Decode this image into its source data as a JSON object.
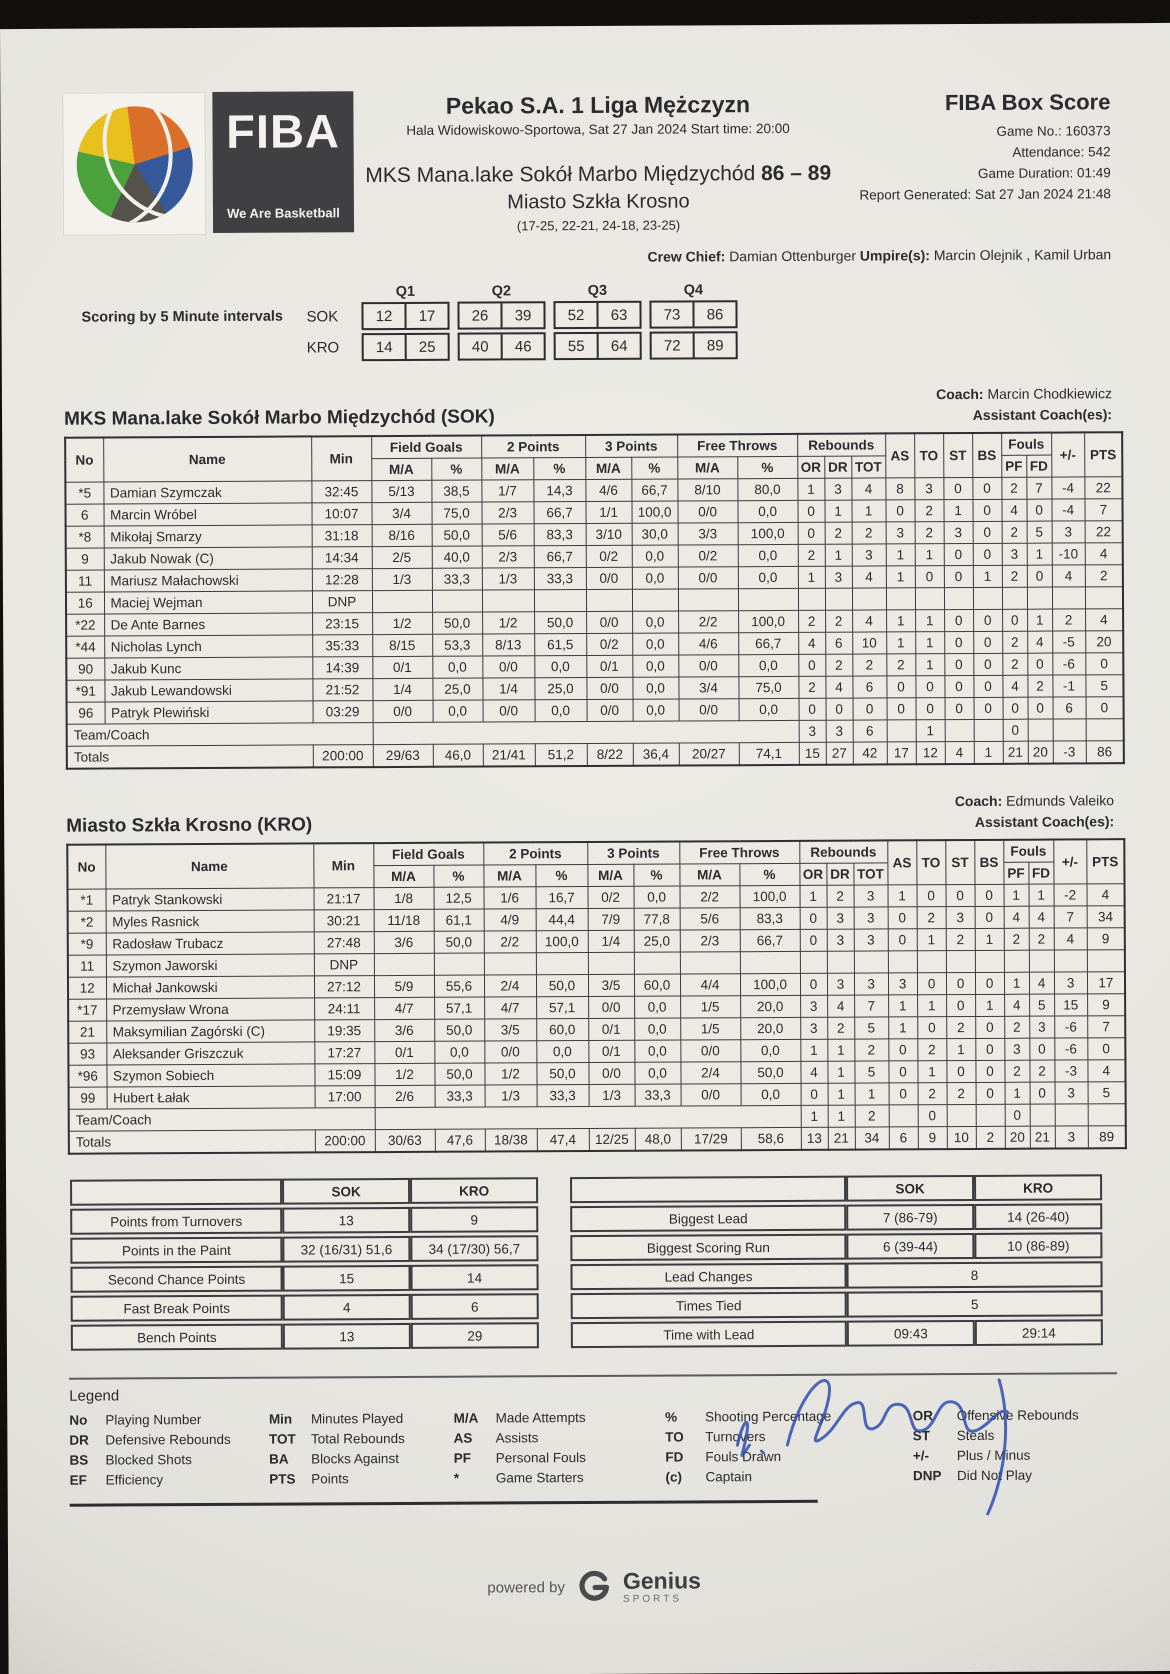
{
  "header": {
    "league": "Pekao S.A. 1 Liga Mężczyzn",
    "venue_line": "Hala Widowiskowo-Sportowa, Sat 27 Jan 2024 Start time: 20:00",
    "match_team": "MKS Mana.lake Sokół Marbo Międzychód ",
    "match_score": "86 – 89",
    "team2_line": "Miasto Szkła Krosno",
    "quarter_scores": "(17-25, 22-21, 24-18, 23-25)",
    "report_title": "FIBA Box Score",
    "game_no": "Game No.: 160373",
    "attendance": "Attendance: 542",
    "duration": "Game Duration: 01:49",
    "generated": "Report Generated: Sat 27 Jan 2024 21:48",
    "crew_label": "Crew Chief:",
    "crew_chief": " Damian Ottenburger ",
    "umpires_label": "Umpire(s):",
    "umpires": " Marcin Olejnik , Kamil Urban",
    "fiba_logo": {
      "title": "FIBA",
      "tagline": "We Are Basketball"
    }
  },
  "intervals": {
    "label": "Scoring by 5 Minute intervals",
    "quarters": [
      "Q1",
      "Q2",
      "Q3",
      "Q4"
    ],
    "rows": [
      {
        "team": "SOK",
        "values": [
          [
            "12",
            "17"
          ],
          [
            "26",
            "39"
          ],
          [
            "52",
            "63"
          ],
          [
            "73",
            "86"
          ]
        ]
      },
      {
        "team": "KRO",
        "values": [
          [
            "14",
            "25"
          ],
          [
            "40",
            "46"
          ],
          [
            "55",
            "64"
          ],
          [
            "72",
            "89"
          ]
        ]
      }
    ]
  },
  "table": {
    "no": "No",
    "name": "Name",
    "min": "Min",
    "fg": "Field Goals",
    "p2": "2 Points",
    "p3": "3 Points",
    "ft": "Free Throws",
    "reb": "Rebounds",
    "ma": "M/A",
    "pct": "%",
    "or": "OR",
    "dr": "DR",
    "tot": "TOT",
    "as": "AS",
    "to": "TO",
    "st": "ST",
    "bs": "BS",
    "fouls": "Fouls",
    "pf": "PF",
    "fd": "FD",
    "pm": "+/-",
    "pts": "PTS",
    "team_coach": "Team/Coach",
    "totals": "Totals"
  },
  "teams": [
    {
      "title": "MKS Mana.lake Sokół Marbo Międzychód (SOK)",
      "coach_label": "Coach:",
      "coach": " Marcin Chodkiewicz",
      "assistant_label": "Assistant Coach(es):",
      "players": [
        [
          "*5",
          "Damian Szymczak",
          "32:45",
          "5/13",
          "38,5",
          "1/7",
          "14,3",
          "4/6",
          "66,7",
          "8/10",
          "80,0",
          "1",
          "3",
          "4",
          "8",
          "3",
          "0",
          "0",
          "2",
          "7",
          "-4",
          "22"
        ],
        [
          "6",
          "Marcin Wróbel",
          "10:07",
          "3/4",
          "75,0",
          "2/3",
          "66,7",
          "1/1",
          "100,0",
          "0/0",
          "0,0",
          "0",
          "1",
          "1",
          "0",
          "2",
          "1",
          "0",
          "4",
          "0",
          "-4",
          "7"
        ],
        [
          "*8",
          "Mikołaj Smarzy",
          "31:18",
          "8/16",
          "50,0",
          "5/6",
          "83,3",
          "3/10",
          "30,0",
          "3/3",
          "100,0",
          "0",
          "2",
          "2",
          "3",
          "2",
          "3",
          "0",
          "2",
          "5",
          "3",
          "22"
        ],
        [
          "9",
          "Jakub Nowak (C)",
          "14:34",
          "2/5",
          "40,0",
          "2/3",
          "66,7",
          "0/2",
          "0,0",
          "0/2",
          "0,0",
          "2",
          "1",
          "3",
          "1",
          "1",
          "0",
          "0",
          "3",
          "1",
          "-10",
          "4"
        ],
        [
          "11",
          "Mariusz Małachowski",
          "12:28",
          "1/3",
          "33,3",
          "1/3",
          "33,3",
          "0/0",
          "0,0",
          "0/0",
          "0,0",
          "1",
          "3",
          "4",
          "1",
          "0",
          "0",
          "1",
          "2",
          "0",
          "4",
          "2"
        ],
        [
          "16",
          "Maciej Wejman",
          "DNP",
          "",
          "",
          "",
          "",
          "",
          "",
          "",
          "",
          "",
          "",
          "",
          "",
          "",
          "",
          "",
          "",
          "",
          "",
          ""
        ],
        [
          "*22",
          "De Ante Barnes",
          "23:15",
          "1/2",
          "50,0",
          "1/2",
          "50,0",
          "0/0",
          "0,0",
          "2/2",
          "100,0",
          "2",
          "2",
          "4",
          "1",
          "1",
          "0",
          "0",
          "0",
          "1",
          "2",
          "4"
        ],
        [
          "*44",
          "Nicholas Lynch",
          "35:33",
          "8/15",
          "53,3",
          "8/13",
          "61,5",
          "0/2",
          "0,0",
          "4/6",
          "66,7",
          "4",
          "6",
          "10",
          "1",
          "1",
          "0",
          "0",
          "2",
          "4",
          "-5",
          "20"
        ],
        [
          "90",
          "Jakub Kunc",
          "14:39",
          "0/1",
          "0,0",
          "0/0",
          "0,0",
          "0/1",
          "0,0",
          "0/0",
          "0,0",
          "0",
          "2",
          "2",
          "2",
          "1",
          "0",
          "0",
          "2",
          "0",
          "-6",
          "0"
        ],
        [
          "*91",
          "Jakub Lewandowski",
          "21:52",
          "1/4",
          "25,0",
          "1/4",
          "25,0",
          "0/0",
          "0,0",
          "3/4",
          "75,0",
          "2",
          "4",
          "6",
          "0",
          "0",
          "0",
          "0",
          "4",
          "2",
          "-1",
          "5"
        ],
        [
          "96",
          "Patryk Plewiński",
          "03:29",
          "0/0",
          "0,0",
          "0/0",
          "0,0",
          "0/0",
          "0,0",
          "0/0",
          "0,0",
          "0",
          "0",
          "0",
          "0",
          "0",
          "0",
          "0",
          "0",
          "0",
          "6",
          "0"
        ]
      ],
      "team_coach": [
        "3",
        "3",
        "6",
        "",
        "1",
        "",
        "",
        "0",
        "",
        "",
        ""
      ],
      "totals": [
        "200:00",
        "29/63",
        "46,0",
        "21/41",
        "51,2",
        "8/22",
        "36,4",
        "20/27",
        "74,1",
        "15",
        "27",
        "42",
        "17",
        "12",
        "4",
        "1",
        "21",
        "20",
        "-3",
        "86"
      ]
    },
    {
      "title": "Miasto Szkła Krosno (KRO)",
      "coach_label": "Coach:",
      "coach": " Edmunds Valeiko",
      "assistant_label": "Assistant Coach(es):",
      "players": [
        [
          "*1",
          "Patryk Stankowski",
          "21:17",
          "1/8",
          "12,5",
          "1/6",
          "16,7",
          "0/2",
          "0,0",
          "2/2",
          "100,0",
          "1",
          "2",
          "3",
          "1",
          "0",
          "0",
          "0",
          "1",
          "1",
          "-2",
          "4"
        ],
        [
          "*2",
          "Myles Rasnick",
          "30:21",
          "11/18",
          "61,1",
          "4/9",
          "44,4",
          "7/9",
          "77,8",
          "5/6",
          "83,3",
          "0",
          "3",
          "3",
          "0",
          "2",
          "3",
          "0",
          "4",
          "4",
          "7",
          "34"
        ],
        [
          "*9",
          "Radosław Trubacz",
          "27:48",
          "3/6",
          "50,0",
          "2/2",
          "100,0",
          "1/4",
          "25,0",
          "2/3",
          "66,7",
          "0",
          "3",
          "3",
          "0",
          "1",
          "2",
          "1",
          "2",
          "2",
          "4",
          "9"
        ],
        [
          "11",
          "Szymon Jaworski",
          "DNP",
          "",
          "",
          "",
          "",
          "",
          "",
          "",
          "",
          "",
          "",
          "",
          "",
          "",
          "",
          "",
          "",
          "",
          "",
          ""
        ],
        [
          "12",
          "Michał Jankowski",
          "27:12",
          "5/9",
          "55,6",
          "2/4",
          "50,0",
          "3/5",
          "60,0",
          "4/4",
          "100,0",
          "0",
          "3",
          "3",
          "3",
          "0",
          "0",
          "0",
          "1",
          "4",
          "3",
          "17"
        ],
        [
          "*17",
          "Przemysław Wrona",
          "24:11",
          "4/7",
          "57,1",
          "4/7",
          "57,1",
          "0/0",
          "0,0",
          "1/5",
          "20,0",
          "3",
          "4",
          "7",
          "1",
          "1",
          "0",
          "1",
          "4",
          "5",
          "15",
          "9"
        ],
        [
          "21",
          "Maksymilian Zagórski (C)",
          "19:35",
          "3/6",
          "50,0",
          "3/5",
          "60,0",
          "0/1",
          "0,0",
          "1/5",
          "20,0",
          "3",
          "2",
          "5",
          "1",
          "0",
          "2",
          "0",
          "2",
          "3",
          "-6",
          "7"
        ],
        [
          "93",
          "Aleksander Griszczuk",
          "17:27",
          "0/1",
          "0,0",
          "0/0",
          "0,0",
          "0/1",
          "0,0",
          "0/0",
          "0,0",
          "1",
          "1",
          "2",
          "0",
          "2",
          "1",
          "0",
          "3",
          "0",
          "-6",
          "0"
        ],
        [
          "*96",
          "Szymon Sobiech",
          "15:09",
          "1/2",
          "50,0",
          "1/2",
          "50,0",
          "0/0",
          "0,0",
          "2/4",
          "50,0",
          "4",
          "1",
          "5",
          "0",
          "1",
          "0",
          "0",
          "2",
          "2",
          "-3",
          "4"
        ],
        [
          "99",
          "Hubert Łałak",
          "17:00",
          "2/6",
          "33,3",
          "1/3",
          "33,3",
          "1/3",
          "33,3",
          "0/0",
          "0,0",
          "0",
          "1",
          "1",
          "0",
          "2",
          "2",
          "0",
          "1",
          "0",
          "3",
          "5"
        ]
      ],
      "team_coach": [
        "1",
        "1",
        "2",
        "",
        "0",
        "",
        "",
        "0",
        "",
        "",
        ""
      ],
      "totals": [
        "200:00",
        "30/63",
        "47,6",
        "18/38",
        "47,4",
        "12/25",
        "48,0",
        "17/29",
        "58,6",
        "13",
        "21",
        "34",
        "6",
        "9",
        "10",
        "2",
        "20",
        "21",
        "3",
        "89"
      ]
    }
  ],
  "summary_left": {
    "headers": [
      "",
      "SOK",
      "KRO"
    ],
    "rows": [
      [
        "Points from Turnovers",
        "13",
        "9"
      ],
      [
        "Points in the Paint",
        "32 (16/31) 51,6",
        "34 (17/30) 56,7"
      ],
      [
        "Second Chance Points",
        "15",
        "14"
      ],
      [
        "Fast Break Points",
        "4",
        "6"
      ],
      [
        "Bench Points",
        "13",
        "29"
      ]
    ]
  },
  "summary_right": {
    "headers": [
      "",
      "SOK",
      "KRO"
    ],
    "rows": [
      [
        "Biggest Lead",
        "7 (86-79)",
        "14 (26-40)"
      ],
      [
        "Biggest Scoring Run",
        "6 (39-44)",
        "10 (86-89)"
      ],
      [
        "Lead Changes",
        "8"
      ],
      [
        "Times Tied",
        "5"
      ],
      [
        "Time with Lead",
        "09:43",
        "29:14"
      ]
    ]
  },
  "legend": {
    "title": "Legend",
    "columns": [
      [
        [
          "No",
          "Playing Number"
        ],
        [
          "DR",
          "Defensive Rebounds"
        ],
        [
          "BS",
          "Blocked Shots"
        ],
        [
          "EF",
          "Efficiency"
        ]
      ],
      [
        [
          "Min",
          "Minutes Played"
        ],
        [
          "TOT",
          "Total Rebounds"
        ],
        [
          "BA",
          "Blocks Against"
        ],
        [
          "PTS",
          "Points"
        ]
      ],
      [
        [
          "M/A",
          "Made Attempts"
        ],
        [
          "AS",
          "Assists"
        ],
        [
          "PF",
          "Personal Fouls"
        ],
        [
          "*",
          "Game Starters"
        ]
      ],
      [
        [
          "%",
          "Shooting Percentage"
        ],
        [
          "TO",
          "Turnovers"
        ],
        [
          "FD",
          "Fouls Drawn"
        ],
        [
          "(c)",
          "Captain"
        ]
      ],
      [
        [
          "OR",
          "Offensive Rebounds"
        ],
        [
          "ST",
          "Steals"
        ],
        [
          "+/-",
          "Plus / Minus"
        ],
        [
          "DNP",
          "Did Not Play"
        ]
      ]
    ]
  },
  "footer": {
    "powered_by": "powered by",
    "brand": "Genius",
    "brand_sub": "SPORTS"
  },
  "colors": {
    "paper": "#e7e6e0",
    "ink": "#2b2b2f",
    "signature_ink": "#2a49b0",
    "fiba_box": "#403f41"
  }
}
